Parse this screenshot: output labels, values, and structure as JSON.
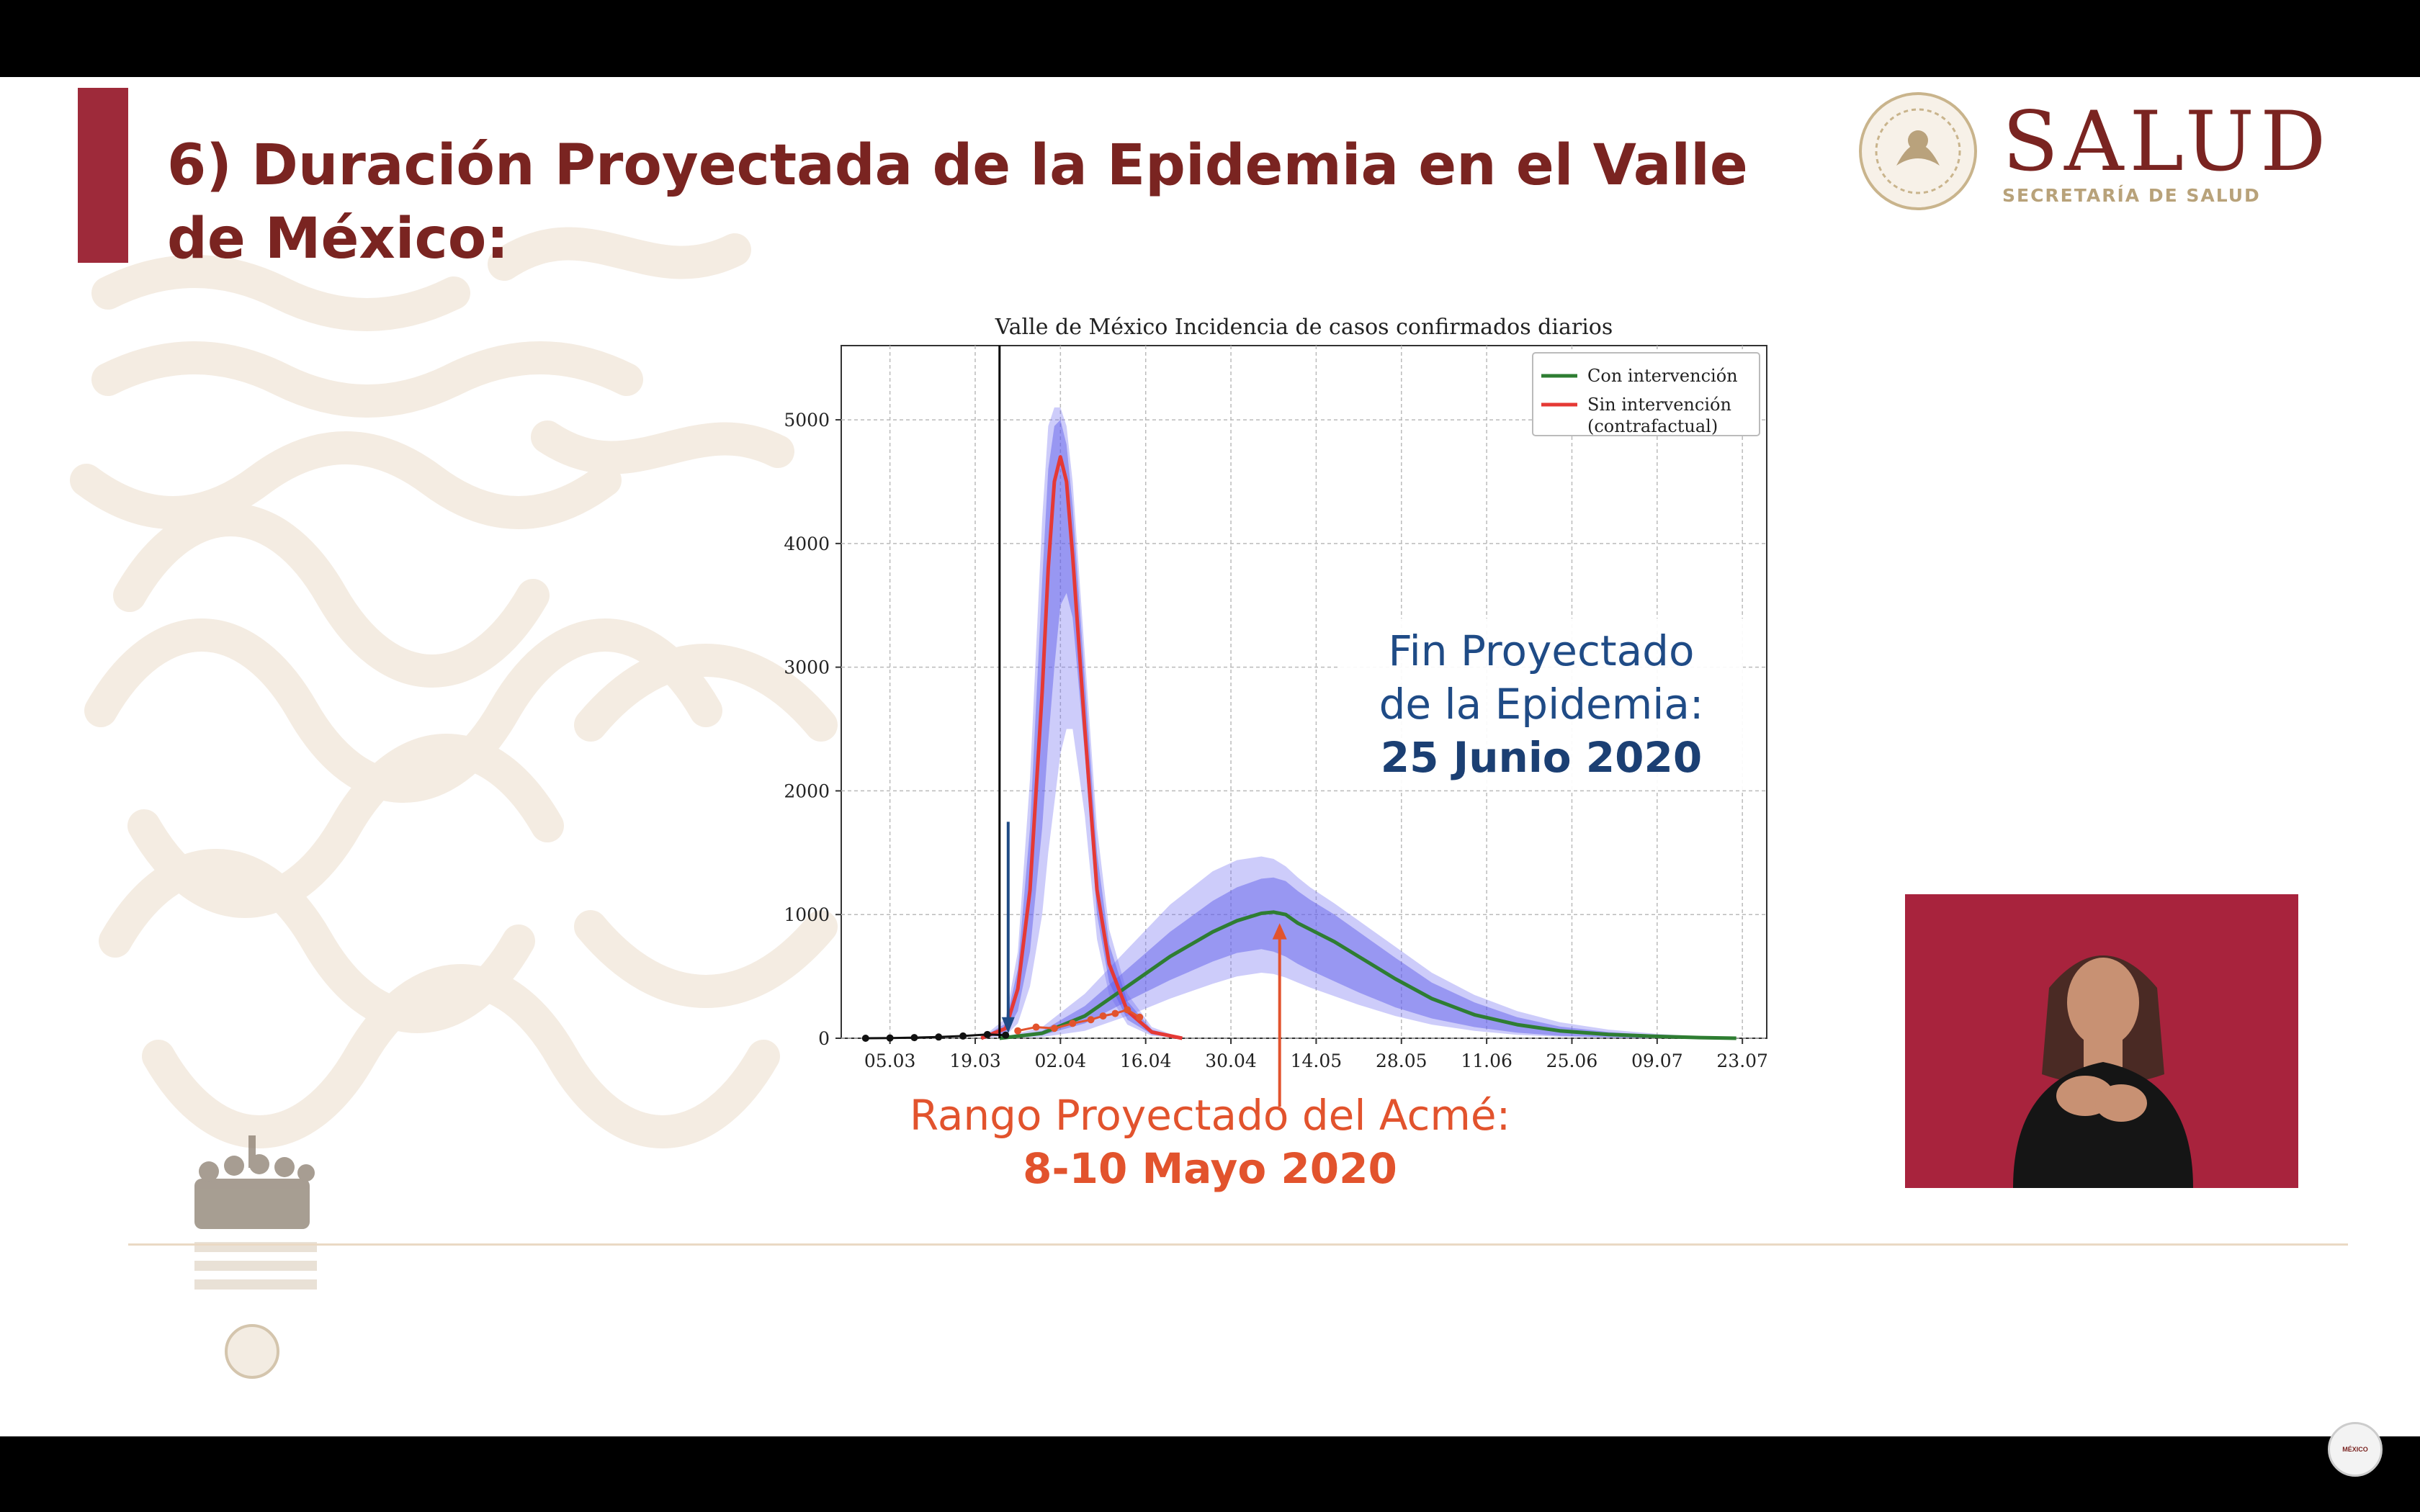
{
  "slide": {
    "title": "6) Duración Proyectada de la Epidemia en el Valle de México:",
    "logo": {
      "main_text": "SALUD",
      "sub_text": "SECRETARÍA DE SALUD",
      "color": "#7a2421",
      "sub_color": "#b8a27a"
    },
    "accent_color": "#9e2a3a"
  },
  "annotations": {
    "fin": {
      "line1": "Fin Proyectado",
      "line2": "de la Epidemia:",
      "line3": "25 Junio 2020",
      "color": "#1f4b86"
    },
    "acme": {
      "line1": "Rango Proyectado del Acmé:",
      "line2": "8-10 Mayo 2020",
      "color": "#e2532d"
    }
  },
  "chart_data": {
    "type": "line",
    "title": "Valle de México Incidencia de casos confirmados diarios",
    "xlabel": "",
    "ylabel": "",
    "x_ticks": [
      "05.03",
      "19.03",
      "02.04",
      "16.04",
      "30.04",
      "14.05",
      "28.05",
      "11.06",
      "25.06",
      "09.07",
      "23.07"
    ],
    "x_range": [
      "2020-02-26",
      "2020-07-27"
    ],
    "ylim": [
      0,
      5600
    ],
    "y_ticks": [
      0,
      1000,
      2000,
      3000,
      4000,
      5000
    ],
    "grid": true,
    "legend_position": "top-right",
    "intervention_date": "2020-03-23",
    "series": [
      {
        "name": "Con intervención",
        "color": "#2e7d32",
        "x": [
          "2020-03-23",
          "2020-03-30",
          "2020-04-06",
          "2020-04-13",
          "2020-04-20",
          "2020-04-27",
          "2020-05-01",
          "2020-05-05",
          "2020-05-07",
          "2020-05-09",
          "2020-05-11",
          "2020-05-13",
          "2020-05-17",
          "2020-05-21",
          "2020-05-27",
          "2020-06-02",
          "2020-06-09",
          "2020-06-16",
          "2020-06-23",
          "2020-07-01",
          "2020-07-09",
          "2020-07-16",
          "2020-07-22"
        ],
        "values": [
          0,
          40,
          180,
          420,
          660,
          860,
          950,
          1010,
          1020,
          1000,
          930,
          880,
          780,
          660,
          480,
          320,
          190,
          110,
          60,
          30,
          15,
          5,
          0
        ],
        "band_inner_low": [
          0,
          25,
          120,
          300,
          470,
          620,
          690,
          720,
          700,
          660,
          600,
          550,
          460,
          370,
          250,
          160,
          90,
          45,
          20,
          8,
          3,
          1,
          0
        ],
        "band_inner_high": [
          0,
          60,
          260,
          560,
          860,
          1110,
          1220,
          1290,
          1300,
          1270,
          1190,
          1120,
          1000,
          860,
          650,
          450,
          290,
          170,
          95,
          50,
          25,
          10,
          0
        ],
        "band_outer_low": [
          0,
          10,
          60,
          180,
          320,
          440,
          500,
          530,
          520,
          490,
          450,
          410,
          340,
          270,
          180,
          110,
          60,
          28,
          12,
          4,
          1,
          0,
          0
        ],
        "band_outer_high": [
          0,
          90,
          360,
          720,
          1080,
          1350,
          1440,
          1470,
          1450,
          1390,
          1300,
          1220,
          1090,
          950,
          740,
          530,
          350,
          220,
          130,
          70,
          35,
          15,
          0
        ]
      },
      {
        "name": "Sin intervención\n(contrafactual)",
        "color": "#e53935",
        "x": [
          "2020-03-20",
          "2020-03-24",
          "2020-03-26",
          "2020-03-28",
          "2020-03-30",
          "2020-03-31",
          "2020-04-01",
          "2020-04-02",
          "2020-04-03",
          "2020-04-04",
          "2020-04-06",
          "2020-04-08",
          "2020-04-10",
          "2020-04-13",
          "2020-04-17",
          "2020-04-22"
        ],
        "values": [
          0,
          80,
          400,
          1200,
          2800,
          3800,
          4500,
          4700,
          4500,
          3900,
          2500,
          1200,
          600,
          220,
          50,
          0
        ],
        "band_inner_low": [
          0,
          40,
          220,
          700,
          1700,
          2400,
          3000,
          3500,
          3600,
          3400,
          2300,
          1000,
          450,
          150,
          30,
          0
        ],
        "band_inner_high": [
          0,
          120,
          560,
          1700,
          3700,
          4600,
          4950,
          5000,
          4800,
          4300,
          2900,
          1500,
          760,
          300,
          70,
          0
        ],
        "band_outer_low": [
          0,
          20,
          120,
          420,
          1000,
          1500,
          1900,
          2300,
          2500,
          2500,
          1800,
          800,
          350,
          110,
          20,
          0
        ],
        "band_outer_high": [
          0,
          160,
          700,
          2100,
          4200,
          4950,
          5100,
          5100,
          4950,
          4500,
          3100,
          1700,
          880,
          360,
          90,
          0
        ]
      },
      {
        "name": "",
        "color": "#111111",
        "x": [
          "2020-03-01",
          "2020-03-05",
          "2020-03-09",
          "2020-03-13",
          "2020-03-17",
          "2020-03-21",
          "2020-03-24"
        ],
        "values": [
          0,
          2,
          5,
          10,
          18,
          30,
          25
        ]
      },
      {
        "name": "",
        "color": "#e2532d",
        "x": [
          "2020-03-26",
          "2020-03-29",
          "2020-04-01",
          "2020-04-04",
          "2020-04-07",
          "2020-04-09",
          "2020-04-11",
          "2020-04-13",
          "2020-04-15"
        ],
        "values": [
          60,
          90,
          80,
          120,
          150,
          180,
          200,
          230,
          170
        ]
      }
    ]
  }
}
